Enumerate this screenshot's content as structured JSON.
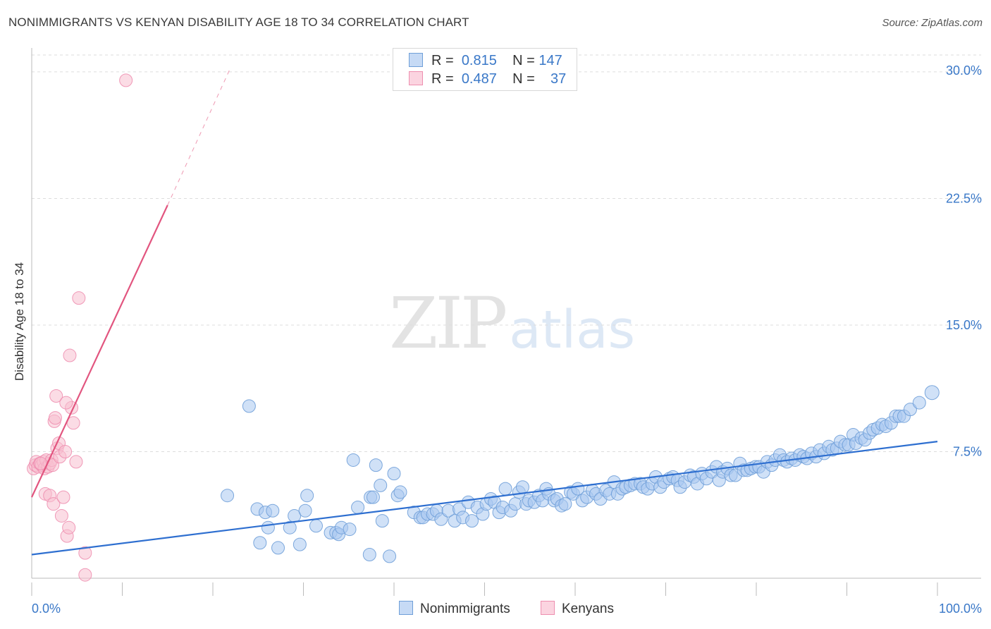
{
  "header": {
    "title": "NONIMMIGRANTS VS KENYAN DISABILITY AGE 18 TO 34 CORRELATION CHART",
    "source": "Source: ZipAtlas.com"
  },
  "watermark": {
    "zip": "ZIP",
    "atlas": "atlas"
  },
  "colors": {
    "blue_fill": "#aac8f0",
    "blue_stroke": "#6f9fd8",
    "blue_line": "#2e6fd0",
    "pink_fill": "#f8bfd0",
    "pink_stroke": "#ee8fb0",
    "pink_line": "#e2557f",
    "tick_label": "#3a78c8",
    "grid": "#dddddd"
  },
  "legend_top": [
    {
      "r_label": "R =",
      "r_value": "0.815",
      "n_label": "N =",
      "n_value": "147"
    },
    {
      "r_label": "R =",
      "r_value": "0.487",
      "n_label": "N =",
      "n_value": "37"
    }
  ],
  "legend_bottom": [
    "Nonimmigrants",
    "Kenyans"
  ],
  "chart_data": {
    "type": "scatter",
    "title": "NONIMMIGRANTS VS KENYAN DISABILITY AGE 18 TO 34 CORRELATION CHART",
    "xlabel": "",
    "ylabel": "Disability Age 18 to 34",
    "xlim": [
      0,
      100
    ],
    "ylim": [
      0,
      31
    ],
    "x_tick_labels": [
      "0.0%",
      "100.0%"
    ],
    "y_ticks": [
      7.5,
      15.0,
      22.5,
      30.0
    ],
    "y_tick_labels": [
      "7.5%",
      "15.0%",
      "22.5%",
      "30.0%"
    ],
    "grid": true,
    "series": [
      {
        "name": "Nonimmigrants",
        "r": 0.815,
        "n": 147,
        "trend": {
          "x0": 0,
          "y0": 1.4,
          "x1": 100,
          "y1": 8.1
        },
        "points": [
          [
            21.6,
            4.9
          ],
          [
            24.0,
            10.2
          ],
          [
            24.9,
            4.1
          ],
          [
            25.2,
            2.1
          ],
          [
            25.8,
            3.9
          ],
          [
            26.1,
            3.0
          ],
          [
            26.6,
            4.0
          ],
          [
            27.2,
            1.8
          ],
          [
            28.5,
            3.0
          ],
          [
            29.0,
            3.7
          ],
          [
            29.6,
            2.0
          ],
          [
            30.2,
            4.0
          ],
          [
            30.4,
            4.9
          ],
          [
            31.4,
            3.1
          ],
          [
            33.0,
            2.7
          ],
          [
            33.6,
            2.7
          ],
          [
            35.5,
            7.0
          ],
          [
            33.9,
            2.6
          ],
          [
            34.2,
            3.0
          ],
          [
            35.1,
            2.9
          ],
          [
            36.0,
            4.2
          ],
          [
            37.4,
            4.8
          ],
          [
            37.7,
            4.8
          ],
          [
            38.0,
            6.7
          ],
          [
            37.3,
            1.4
          ],
          [
            38.5,
            5.5
          ],
          [
            38.7,
            3.4
          ],
          [
            39.5,
            1.3
          ],
          [
            40.0,
            6.2
          ],
          [
            40.4,
            4.9
          ],
          [
            40.7,
            5.1
          ],
          [
            42.2,
            3.9
          ],
          [
            42.9,
            3.6
          ],
          [
            43.2,
            3.6
          ],
          [
            43.7,
            3.8
          ],
          [
            44.3,
            3.8
          ],
          [
            44.7,
            4.0
          ],
          [
            45.2,
            3.5
          ],
          [
            46.0,
            4.0
          ],
          [
            46.7,
            3.4
          ],
          [
            47.2,
            4.1
          ],
          [
            47.6,
            3.6
          ],
          [
            48.2,
            4.5
          ],
          [
            48.6,
            3.4
          ],
          [
            49.2,
            4.2
          ],
          [
            49.8,
            3.8
          ],
          [
            50.2,
            4.4
          ],
          [
            50.7,
            4.7
          ],
          [
            51.1,
            4.5
          ],
          [
            51.6,
            3.9
          ],
          [
            52.0,
            4.2
          ],
          [
            52.3,
            5.3
          ],
          [
            52.9,
            4.0
          ],
          [
            53.4,
            4.4
          ],
          [
            53.8,
            5.1
          ],
          [
            54.2,
            5.4
          ],
          [
            54.6,
            4.4
          ],
          [
            54.9,
            4.6
          ],
          [
            55.5,
            4.5
          ],
          [
            56.0,
            4.9
          ],
          [
            56.4,
            4.6
          ],
          [
            56.8,
            5.3
          ],
          [
            57.1,
            5.0
          ],
          [
            57.7,
            4.6
          ],
          [
            58.0,
            4.7
          ],
          [
            58.5,
            4.3
          ],
          [
            58.9,
            4.4
          ],
          [
            59.5,
            5.1
          ],
          [
            59.8,
            5.0
          ],
          [
            60.3,
            5.3
          ],
          [
            60.8,
            4.6
          ],
          [
            61.3,
            4.8
          ],
          [
            61.9,
            5.2
          ],
          [
            62.3,
            5.0
          ],
          [
            62.8,
            4.7
          ],
          [
            63.4,
            5.2
          ],
          [
            63.8,
            5.0
          ],
          [
            64.3,
            5.7
          ],
          [
            64.7,
            5.0
          ],
          [
            65.2,
            5.3
          ],
          [
            65.6,
            5.4
          ],
          [
            66.1,
            5.5
          ],
          [
            66.6,
            5.6
          ],
          [
            67.2,
            5.6
          ],
          [
            67.5,
            5.4
          ],
          [
            68.0,
            5.3
          ],
          [
            68.5,
            5.6
          ],
          [
            68.9,
            6.0
          ],
          [
            69.4,
            5.4
          ],
          [
            69.8,
            5.7
          ],
          [
            70.4,
            5.9
          ],
          [
            70.8,
            6.0
          ],
          [
            71.3,
            5.8
          ],
          [
            71.6,
            5.4
          ],
          [
            72.1,
            5.7
          ],
          [
            72.7,
            6.1
          ],
          [
            73.1,
            6.0
          ],
          [
            73.5,
            5.6
          ],
          [
            74.0,
            6.2
          ],
          [
            74.5,
            5.9
          ],
          [
            75.1,
            6.3
          ],
          [
            75.6,
            6.6
          ],
          [
            75.9,
            5.8
          ],
          [
            76.3,
            6.3
          ],
          [
            76.8,
            6.5
          ],
          [
            77.2,
            6.1
          ],
          [
            77.7,
            6.1
          ],
          [
            78.2,
            6.8
          ],
          [
            78.6,
            6.4
          ],
          [
            79.0,
            6.4
          ],
          [
            79.4,
            6.5
          ],
          [
            79.9,
            6.6
          ],
          [
            80.3,
            6.6
          ],
          [
            80.8,
            6.3
          ],
          [
            81.2,
            6.9
          ],
          [
            81.7,
            6.7
          ],
          [
            82.1,
            7.0
          ],
          [
            82.6,
            7.3
          ],
          [
            83.0,
            7.0
          ],
          [
            83.4,
            6.9
          ],
          [
            83.9,
            7.1
          ],
          [
            84.3,
            7.0
          ],
          [
            84.8,
            7.3
          ],
          [
            85.2,
            7.2
          ],
          [
            85.6,
            7.1
          ],
          [
            86.1,
            7.4
          ],
          [
            86.6,
            7.2
          ],
          [
            87.0,
            7.6
          ],
          [
            87.5,
            7.4
          ],
          [
            88.0,
            7.8
          ],
          [
            88.4,
            7.6
          ],
          [
            88.9,
            7.7
          ],
          [
            89.3,
            8.1
          ],
          [
            89.8,
            7.9
          ],
          [
            90.2,
            7.9
          ],
          [
            90.7,
            8.5
          ],
          [
            91.0,
            8.0
          ],
          [
            91.6,
            8.3
          ],
          [
            92.0,
            8.2
          ],
          [
            92.5,
            8.6
          ],
          [
            92.9,
            8.8
          ],
          [
            93.4,
            8.9
          ],
          [
            93.9,
            9.1
          ],
          [
            94.3,
            9.0
          ],
          [
            94.9,
            9.2
          ],
          [
            95.4,
            9.6
          ],
          [
            95.8,
            9.6
          ],
          [
            96.3,
            9.6
          ],
          [
            97.0,
            10.0
          ],
          [
            98.0,
            10.4
          ],
          [
            99.4,
            11.0
          ]
        ]
      },
      {
        "name": "Kenyans",
        "r": 0.487,
        "n": 37,
        "trend": {
          "x0": 0,
          "y0": 4.8,
          "x1": 15.0,
          "y1": 22.1,
          "dashed_to": {
            "x": 22.0,
            "y": 30.3
          }
        },
        "points": [
          [
            0.2,
            6.5
          ],
          [
            0.4,
            6.7
          ],
          [
            0.5,
            6.9
          ],
          [
            0.7,
            6.6
          ],
          [
            0.9,
            6.8
          ],
          [
            1.1,
            6.7
          ],
          [
            1.3,
            6.9
          ],
          [
            1.4,
            6.5
          ],
          [
            1.6,
            7.0
          ],
          [
            1.8,
            6.6
          ],
          [
            2.0,
            6.8
          ],
          [
            2.2,
            7.0
          ],
          [
            2.3,
            6.7
          ],
          [
            1.0,
            6.8
          ],
          [
            1.5,
            5.0
          ],
          [
            2.0,
            4.9
          ],
          [
            2.4,
            4.4
          ],
          [
            2.5,
            9.3
          ],
          [
            2.6,
            9.5
          ],
          [
            2.8,
            7.7
          ],
          [
            3.0,
            8.0
          ],
          [
            3.1,
            7.2
          ],
          [
            3.3,
            3.7
          ],
          [
            3.5,
            4.8
          ],
          [
            3.7,
            7.5
          ],
          [
            3.9,
            2.5
          ],
          [
            4.1,
            3.0
          ],
          [
            4.2,
            13.2
          ],
          [
            4.4,
            10.1
          ],
          [
            4.6,
            9.2
          ],
          [
            4.9,
            6.9
          ],
          [
            5.2,
            16.6
          ],
          [
            5.9,
            1.5
          ],
          [
            5.9,
            0.2
          ],
          [
            10.4,
            29.5
          ],
          [
            2.7,
            10.8
          ],
          [
            3.8,
            10.4
          ]
        ]
      }
    ]
  }
}
